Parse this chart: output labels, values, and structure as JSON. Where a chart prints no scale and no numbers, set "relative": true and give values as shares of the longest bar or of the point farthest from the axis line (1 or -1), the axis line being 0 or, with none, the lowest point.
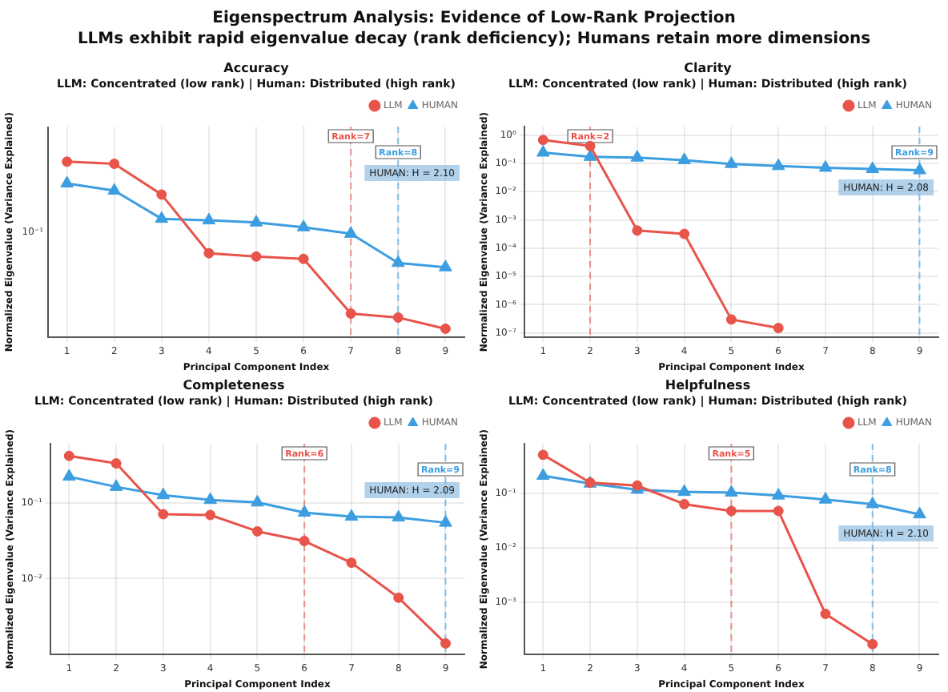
{
  "chart_data": [
    {
      "type": "line",
      "title": "Accuracy",
      "subtitle": "LLM: Concentrated (low rank) | Human: Distributed (high rank)",
      "xlabel": "Principal Component Index",
      "ylabel": "Normalized Eigenvalue (Variance Explained)",
      "x": [
        1,
        2,
        3,
        4,
        5,
        6,
        7,
        8,
        9
      ],
      "xlim": [
        0.6,
        9.4
      ],
      "xticks": [
        1,
        2,
        3,
        4,
        5,
        6,
        7,
        8,
        9
      ],
      "relative": true,
      "grid": "x",
      "legend": "top right",
      "series": [
        {
          "name": "LLM",
          "color": "#e8534a",
          "marker": "circle",
          "values": [
            1,
            0.988,
            0.813,
            0.479,
            0.46,
            0.447,
            0.135,
            0.113,
            0.049
          ]
        },
        {
          "name": "HUMAN",
          "color": "#3c9ee0",
          "marker": "triangle",
          "values": [
            0.876,
            0.835,
            0.675,
            0.666,
            0.654,
            0.627,
            0.59,
            0.424,
            0.399
          ]
        }
      ],
      "ref_lines": [
        {
          "axis": "x",
          "value": 7,
          "label": "Rank=7",
          "color": "#e8534a",
          "line_style": "dashed"
        },
        {
          "axis": "x",
          "value": 8,
          "label": "Rank=8",
          "color": "#3c9ee0",
          "line_style": "dashed"
        }
      ],
      "annotations": [
        "Eigenspectrum Analysis: Evidence of Low-Rank Projection",
        "LLMs exhibit rapid eigenvalue decay (rank deficiency); Humans retain more dimensions",
        "10⁻¹",
        "HUMAN: H = 2.10"
      ]
    },
    {
      "type": "line",
      "title": "Clarity",
      "subtitle": "LLM: Concentrated (low rank) | Human: Distributed (high rank)",
      "xlabel": "Principal Component Index",
      "ylabel": "Normalized Eigenvalue (Variance Explained)",
      "x": [
        1,
        2,
        3,
        4,
        5,
        6,
        7,
        8,
        9
      ],
      "xlim": [
        0.6,
        9.4
      ],
      "xticks": [
        1,
        2,
        3,
        4,
        5,
        6,
        7,
        8,
        9
      ],
      "ylim": [
        7e-08,
        2
      ],
      "yticks": [
        {
          "value": 1,
          "label": "10⁰"
        },
        {
          "value": 0.1,
          "label": "10⁻¹"
        },
        {
          "value": 0.01,
          "label": "10⁻²"
        },
        {
          "value": 0.001,
          "label": "10⁻³"
        },
        {
          "value": 0.0001,
          "label": "10⁻⁴"
        },
        {
          "value": 1e-05,
          "label": "10⁻⁵"
        },
        {
          "value": 1e-06,
          "label": "10⁻⁶"
        },
        {
          "value": 1e-07,
          "label": "10⁻⁷"
        }
      ],
      "log": true,
      "grid": true,
      "legend": "top right",
      "series": [
        {
          "name": "LLM",
          "color": "#e8534a",
          "marker": "circle",
          "values": [
            0.67,
            0.41,
            0.00042,
            0.00032,
            3e-07,
            1.5e-07,
            null,
            null,
            null
          ]
        },
        {
          "name": "HUMAN",
          "color": "#3c9ee0",
          "marker": "triangle",
          "values": [
            0.24,
            0.17,
            0.16,
            0.13,
            0.095,
            0.08,
            0.07,
            0.063,
            0.057
          ]
        }
      ],
      "ref_lines": [
        {
          "axis": "x",
          "value": 2,
          "label": "Rank=2",
          "color": "#e8534a",
          "line_style": "dashed"
        },
        {
          "axis": "x",
          "value": 9,
          "label": "Rank=9",
          "color": "#3c9ee0",
          "line_style": "dashed"
        }
      ],
      "annotations": [
        "HUMAN: H = 2.08"
      ]
    },
    {
      "type": "line",
      "title": "Completeness",
      "subtitle": "LLM: Concentrated (low rank) | Human: Distributed (high rank)",
      "xlabel": "Principal Component Index",
      "ylabel": "Normalized Eigenvalue (Variance Explained)",
      "x": [
        1,
        2,
        3,
        4,
        5,
        6,
        7,
        8,
        9
      ],
      "xlim": [
        0.6,
        9.4
      ],
      "xticks": [
        1,
        2,
        3,
        4,
        5,
        6,
        7,
        8,
        9
      ],
      "ylim": [
        0.001,
        0.6
      ],
      "yticks": [
        {
          "value": 0.1,
          "label": "10⁻¹"
        },
        {
          "value": 0.01,
          "label": "10⁻²"
        }
      ],
      "log": true,
      "grid": true,
      "legend": "top right",
      "series": [
        {
          "name": "LLM",
          "color": "#e8534a",
          "marker": "circle",
          "values": [
            0.415,
            0.33,
            0.0707,
            0.069,
            0.042,
            0.0313,
            0.0162,
            0.0056,
            0.0014
          ]
        },
        {
          "name": "HUMAN",
          "color": "#3c9ee0",
          "marker": "triangle",
          "values": [
            0.221,
            0.162,
            0.126,
            0.109,
            0.101,
            0.0743,
            0.0656,
            0.064,
            0.0546
          ]
        }
      ],
      "ref_lines": [
        {
          "axis": "x",
          "value": 6,
          "label": "Rank=6",
          "color": "#e8534a",
          "line_style": "dashed"
        },
        {
          "axis": "x",
          "value": 9,
          "label": "Rank=9",
          "color": "#3c9ee0",
          "line_style": "dashed"
        }
      ],
      "annotations": [
        "HUMAN: H = 2.09"
      ]
    },
    {
      "type": "line",
      "title": "Helpfulness",
      "subtitle": "LLM: Concentrated (low rank) | Human: Distributed (high rank)",
      "xlabel": "Principal Component Index",
      "ylabel": "Normalized Eigenvalue (Variance Explained)",
      "x": [
        1,
        2,
        3,
        4,
        5,
        6,
        7,
        8,
        9
      ],
      "xlim": [
        0.6,
        9.4
      ],
      "xticks": [
        1,
        2,
        3,
        4,
        5,
        6,
        7,
        8,
        9
      ],
      "ylim": [
        0.00011,
        0.8
      ],
      "yticks": [
        {
          "value": 0.1,
          "label": "10⁻¹"
        },
        {
          "value": 0.01,
          "label": "10⁻²"
        },
        {
          "value": 0.001,
          "label": "10⁻³"
        }
      ],
      "log": true,
      "grid": true,
      "legend": "top right",
      "series": [
        {
          "name": "LLM",
          "color": "#e8534a",
          "marker": "circle",
          "values": [
            0.5,
            0.155,
            0.137,
            0.0625,
            0.047,
            0.047,
            0.00061,
            0.00017,
            null
          ]
        },
        {
          "name": "HUMAN",
          "color": "#3c9ee0",
          "marker": "triangle",
          "values": [
            0.207,
            0.149,
            0.115,
            0.105,
            0.102,
            0.09,
            0.076,
            0.0625,
            0.0407
          ]
        }
      ],
      "ref_lines": [
        {
          "axis": "x",
          "value": 5,
          "label": "Rank=5",
          "color": "#e8534a",
          "line_style": "dashed"
        },
        {
          "axis": "x",
          "value": 8,
          "label": "Rank=8",
          "color": "#3c9ee0",
          "line_style": "dashed"
        }
      ],
      "annotations": [
        "HUMAN: H = 2.10"
      ]
    }
  ]
}
